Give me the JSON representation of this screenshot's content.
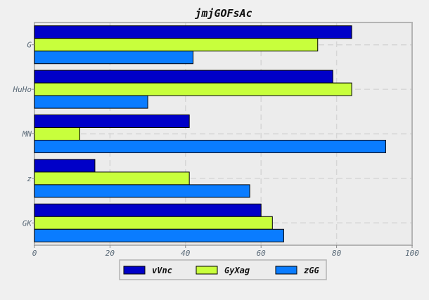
{
  "chart_data": {
    "type": "bar",
    "orientation": "horizontal",
    "title": "jmjGOFsAc",
    "xlabel": "",
    "ylabel": "",
    "categories": [
      "G",
      "HuHo",
      "MN",
      "z",
      "GK"
    ],
    "series": [
      {
        "name": "vVnc",
        "color": "#0000c8",
        "values": [
          84,
          79,
          41,
          16,
          60
        ]
      },
      {
        "name": "GyXag",
        "color": "#c8ff3c",
        "values": [
          75,
          84,
          12,
          41,
          63
        ]
      },
      {
        "name": "zGG",
        "color": "#0a7cff",
        "values": [
          42,
          30,
          93,
          57,
          66
        ]
      }
    ],
    "xlim": [
      0,
      100
    ],
    "xticks": [
      0,
      20,
      40,
      60,
      80,
      100
    ],
    "grid": true,
    "legend_position": "bottom-center"
  }
}
